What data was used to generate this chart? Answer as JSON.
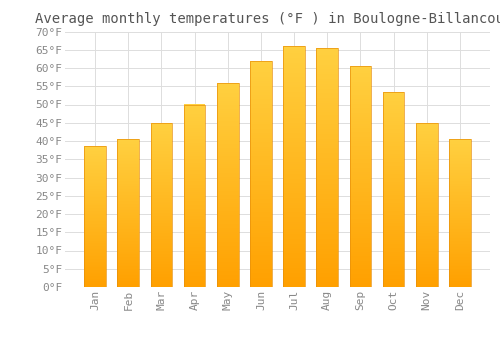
{
  "title": "Average monthly temperatures (°F ) in Boulogne-Billancourt",
  "months": [
    "Jan",
    "Feb",
    "Mar",
    "Apr",
    "May",
    "Jun",
    "Jul",
    "Aug",
    "Sep",
    "Oct",
    "Nov",
    "Dec"
  ],
  "values": [
    38.5,
    40.5,
    45,
    50,
    56,
    62,
    66,
    65.5,
    60.5,
    53.5,
    45,
    40.5
  ],
  "bar_color_top": "#FFD040",
  "bar_color_bottom": "#FFA000",
  "background_color": "#FFFFFF",
  "grid_color": "#DDDDDD",
  "ylim": [
    0,
    70
  ],
  "yticks": [
    0,
    5,
    10,
    15,
    20,
    25,
    30,
    35,
    40,
    45,
    50,
    55,
    60,
    65,
    70
  ],
  "tick_label_color": "#888888",
  "title_fontsize": 10,
  "tick_fontsize": 8,
  "title_color": "#555555"
}
